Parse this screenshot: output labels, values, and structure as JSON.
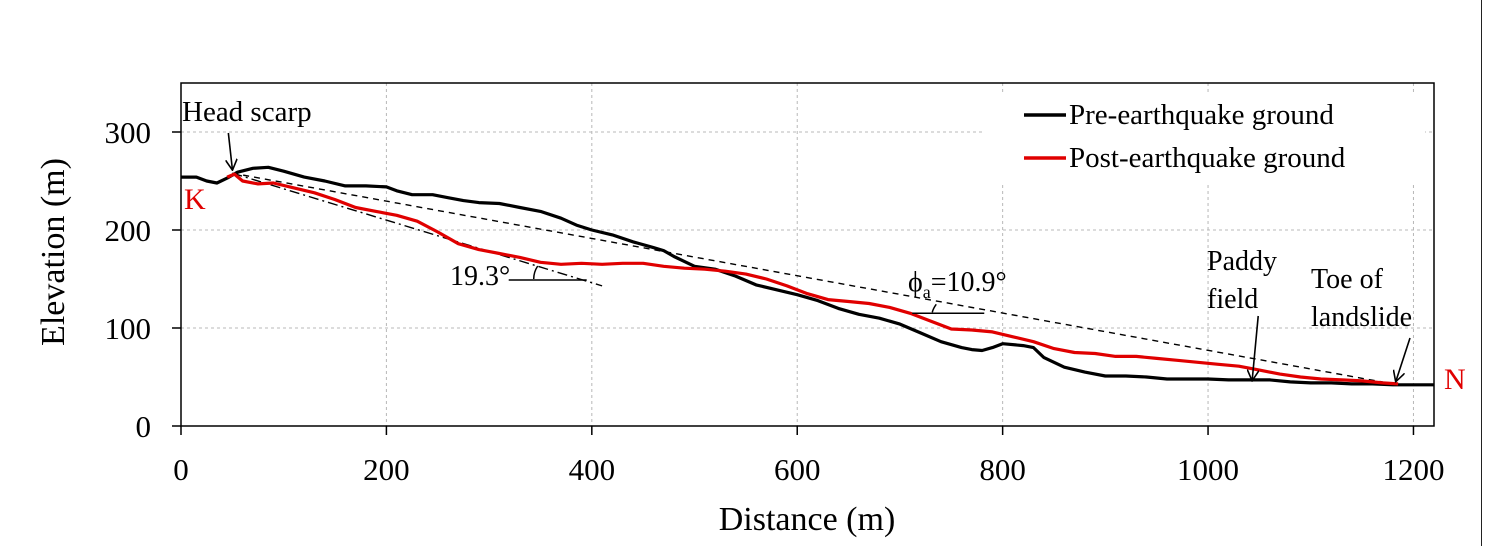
{
  "chart_data": {
    "type": "line",
    "title": "",
    "xlabel": "Distance (m)",
    "ylabel": "Elevation (m)",
    "xlim": [
      0,
      1220
    ],
    "ylim": [
      0,
      350
    ],
    "x_ticks": [
      0,
      200,
      400,
      600,
      800,
      1000,
      1200
    ],
    "y_ticks": [
      0,
      100,
      200,
      300
    ],
    "grid": true,
    "legend_position": "top-right",
    "colors": {
      "pre": "#000000",
      "post": "#e00000",
      "reference": "#000000",
      "point_labels": "#e00000"
    },
    "series": [
      {
        "name": "Pre-earthquake ground",
        "color": "#000000",
        "points": [
          [
            0,
            254
          ],
          [
            15,
            254
          ],
          [
            25,
            250
          ],
          [
            35,
            248
          ],
          [
            45,
            253
          ],
          [
            55,
            259
          ],
          [
            70,
            263
          ],
          [
            85,
            264
          ],
          [
            100,
            260
          ],
          [
            120,
            254
          ],
          [
            140,
            250
          ],
          [
            160,
            245
          ],
          [
            180,
            245
          ],
          [
            200,
            244
          ],
          [
            210,
            240
          ],
          [
            225,
            236
          ],
          [
            245,
            236
          ],
          [
            260,
            233
          ],
          [
            275,
            230
          ],
          [
            290,
            228
          ],
          [
            310,
            227
          ],
          [
            330,
            223
          ],
          [
            350,
            219
          ],
          [
            370,
            212
          ],
          [
            385,
            205
          ],
          [
            400,
            200
          ],
          [
            420,
            195
          ],
          [
            440,
            188
          ],
          [
            460,
            182
          ],
          [
            470,
            179
          ],
          [
            480,
            173
          ],
          [
            490,
            168
          ],
          [
            500,
            163
          ],
          [
            520,
            160
          ],
          [
            540,
            153
          ],
          [
            560,
            144
          ],
          [
            580,
            139
          ],
          [
            600,
            134
          ],
          [
            620,
            128
          ],
          [
            640,
            120
          ],
          [
            660,
            114
          ],
          [
            680,
            110
          ],
          [
            700,
            104
          ],
          [
            720,
            95
          ],
          [
            740,
            86
          ],
          [
            760,
            80
          ],
          [
            770,
            78
          ],
          [
            780,
            77
          ],
          [
            790,
            80
          ],
          [
            800,
            84
          ],
          [
            820,
            82
          ],
          [
            830,
            80
          ],
          [
            840,
            70
          ],
          [
            860,
            60
          ],
          [
            880,
            55
          ],
          [
            900,
            51
          ],
          [
            920,
            51
          ],
          [
            940,
            50
          ],
          [
            960,
            48
          ],
          [
            980,
            48
          ],
          [
            1000,
            48
          ],
          [
            1020,
            47
          ],
          [
            1040,
            47
          ],
          [
            1060,
            47
          ],
          [
            1080,
            45
          ],
          [
            1100,
            44
          ],
          [
            1120,
            44
          ],
          [
            1140,
            43
          ],
          [
            1160,
            43
          ],
          [
            1180,
            42
          ],
          [
            1200,
            42
          ],
          [
            1220,
            42
          ]
        ]
      },
      {
        "name": "Post-earthquake ground",
        "color": "#e00000",
        "points": [
          [
            45,
            254
          ],
          [
            52,
            257
          ],
          [
            60,
            250
          ],
          [
            75,
            247
          ],
          [
            90,
            248
          ],
          [
            110,
            243
          ],
          [
            130,
            238
          ],
          [
            150,
            231
          ],
          [
            170,
            223
          ],
          [
            190,
            219
          ],
          [
            210,
            215
          ],
          [
            230,
            209
          ],
          [
            250,
            198
          ],
          [
            270,
            186
          ],
          [
            290,
            180
          ],
          [
            310,
            176
          ],
          [
            330,
            172
          ],
          [
            350,
            167
          ],
          [
            370,
            165
          ],
          [
            390,
            166
          ],
          [
            410,
            165
          ],
          [
            430,
            166
          ],
          [
            450,
            166
          ],
          [
            470,
            163
          ],
          [
            490,
            161
          ],
          [
            510,
            160
          ],
          [
            530,
            158
          ],
          [
            550,
            155
          ],
          [
            570,
            150
          ],
          [
            590,
            143
          ],
          [
            610,
            135
          ],
          [
            630,
            129
          ],
          [
            650,
            127
          ],
          [
            670,
            125
          ],
          [
            690,
            121
          ],
          [
            710,
            115
          ],
          [
            730,
            107
          ],
          [
            750,
            99
          ],
          [
            770,
            98
          ],
          [
            790,
            96
          ],
          [
            810,
            91
          ],
          [
            830,
            86
          ],
          [
            850,
            79
          ],
          [
            870,
            75
          ],
          [
            890,
            74
          ],
          [
            910,
            71
          ],
          [
            930,
            71
          ],
          [
            950,
            69
          ],
          [
            970,
            67
          ],
          [
            990,
            65
          ],
          [
            1010,
            63
          ],
          [
            1030,
            61
          ],
          [
            1050,
            57
          ],
          [
            1070,
            53
          ],
          [
            1090,
            50
          ],
          [
            1110,
            48
          ],
          [
            1130,
            47
          ],
          [
            1150,
            46
          ],
          [
            1170,
            44
          ],
          [
            1185,
            43
          ]
        ]
      }
    ],
    "reference_lines": [
      {
        "style": "dashed",
        "from": [
          50,
          258
        ],
        "to": [
          1185,
          42
        ]
      },
      {
        "style": "dashdot",
        "from": [
          50,
          258
        ],
        "to": [
          410,
          143
        ]
      }
    ],
    "annotations": {
      "head_scarp": {
        "text": "Head scarp",
        "target": [
          50,
          258
        ]
      },
      "angle_scarp": {
        "text": "19.3°",
        "vertex": [
          322,
          149
        ]
      },
      "angle_phi": {
        "symbol": "ϕ",
        "subscript": "a",
        "text": "=10.9°",
        "vertex": [
          712,
          115
        ]
      },
      "paddy": {
        "lines": [
          "Paddy",
          "field"
        ],
        "target": [
          1043,
          42
        ]
      },
      "toe": {
        "lines": [
          "Toe of",
          "landslide"
        ],
        "target": [
          1183,
          42
        ]
      },
      "point_k": {
        "text": "K",
        "at": [
          0,
          232
        ]
      },
      "point_n": {
        "text": "N",
        "at": [
          1222,
          48
        ]
      }
    }
  }
}
